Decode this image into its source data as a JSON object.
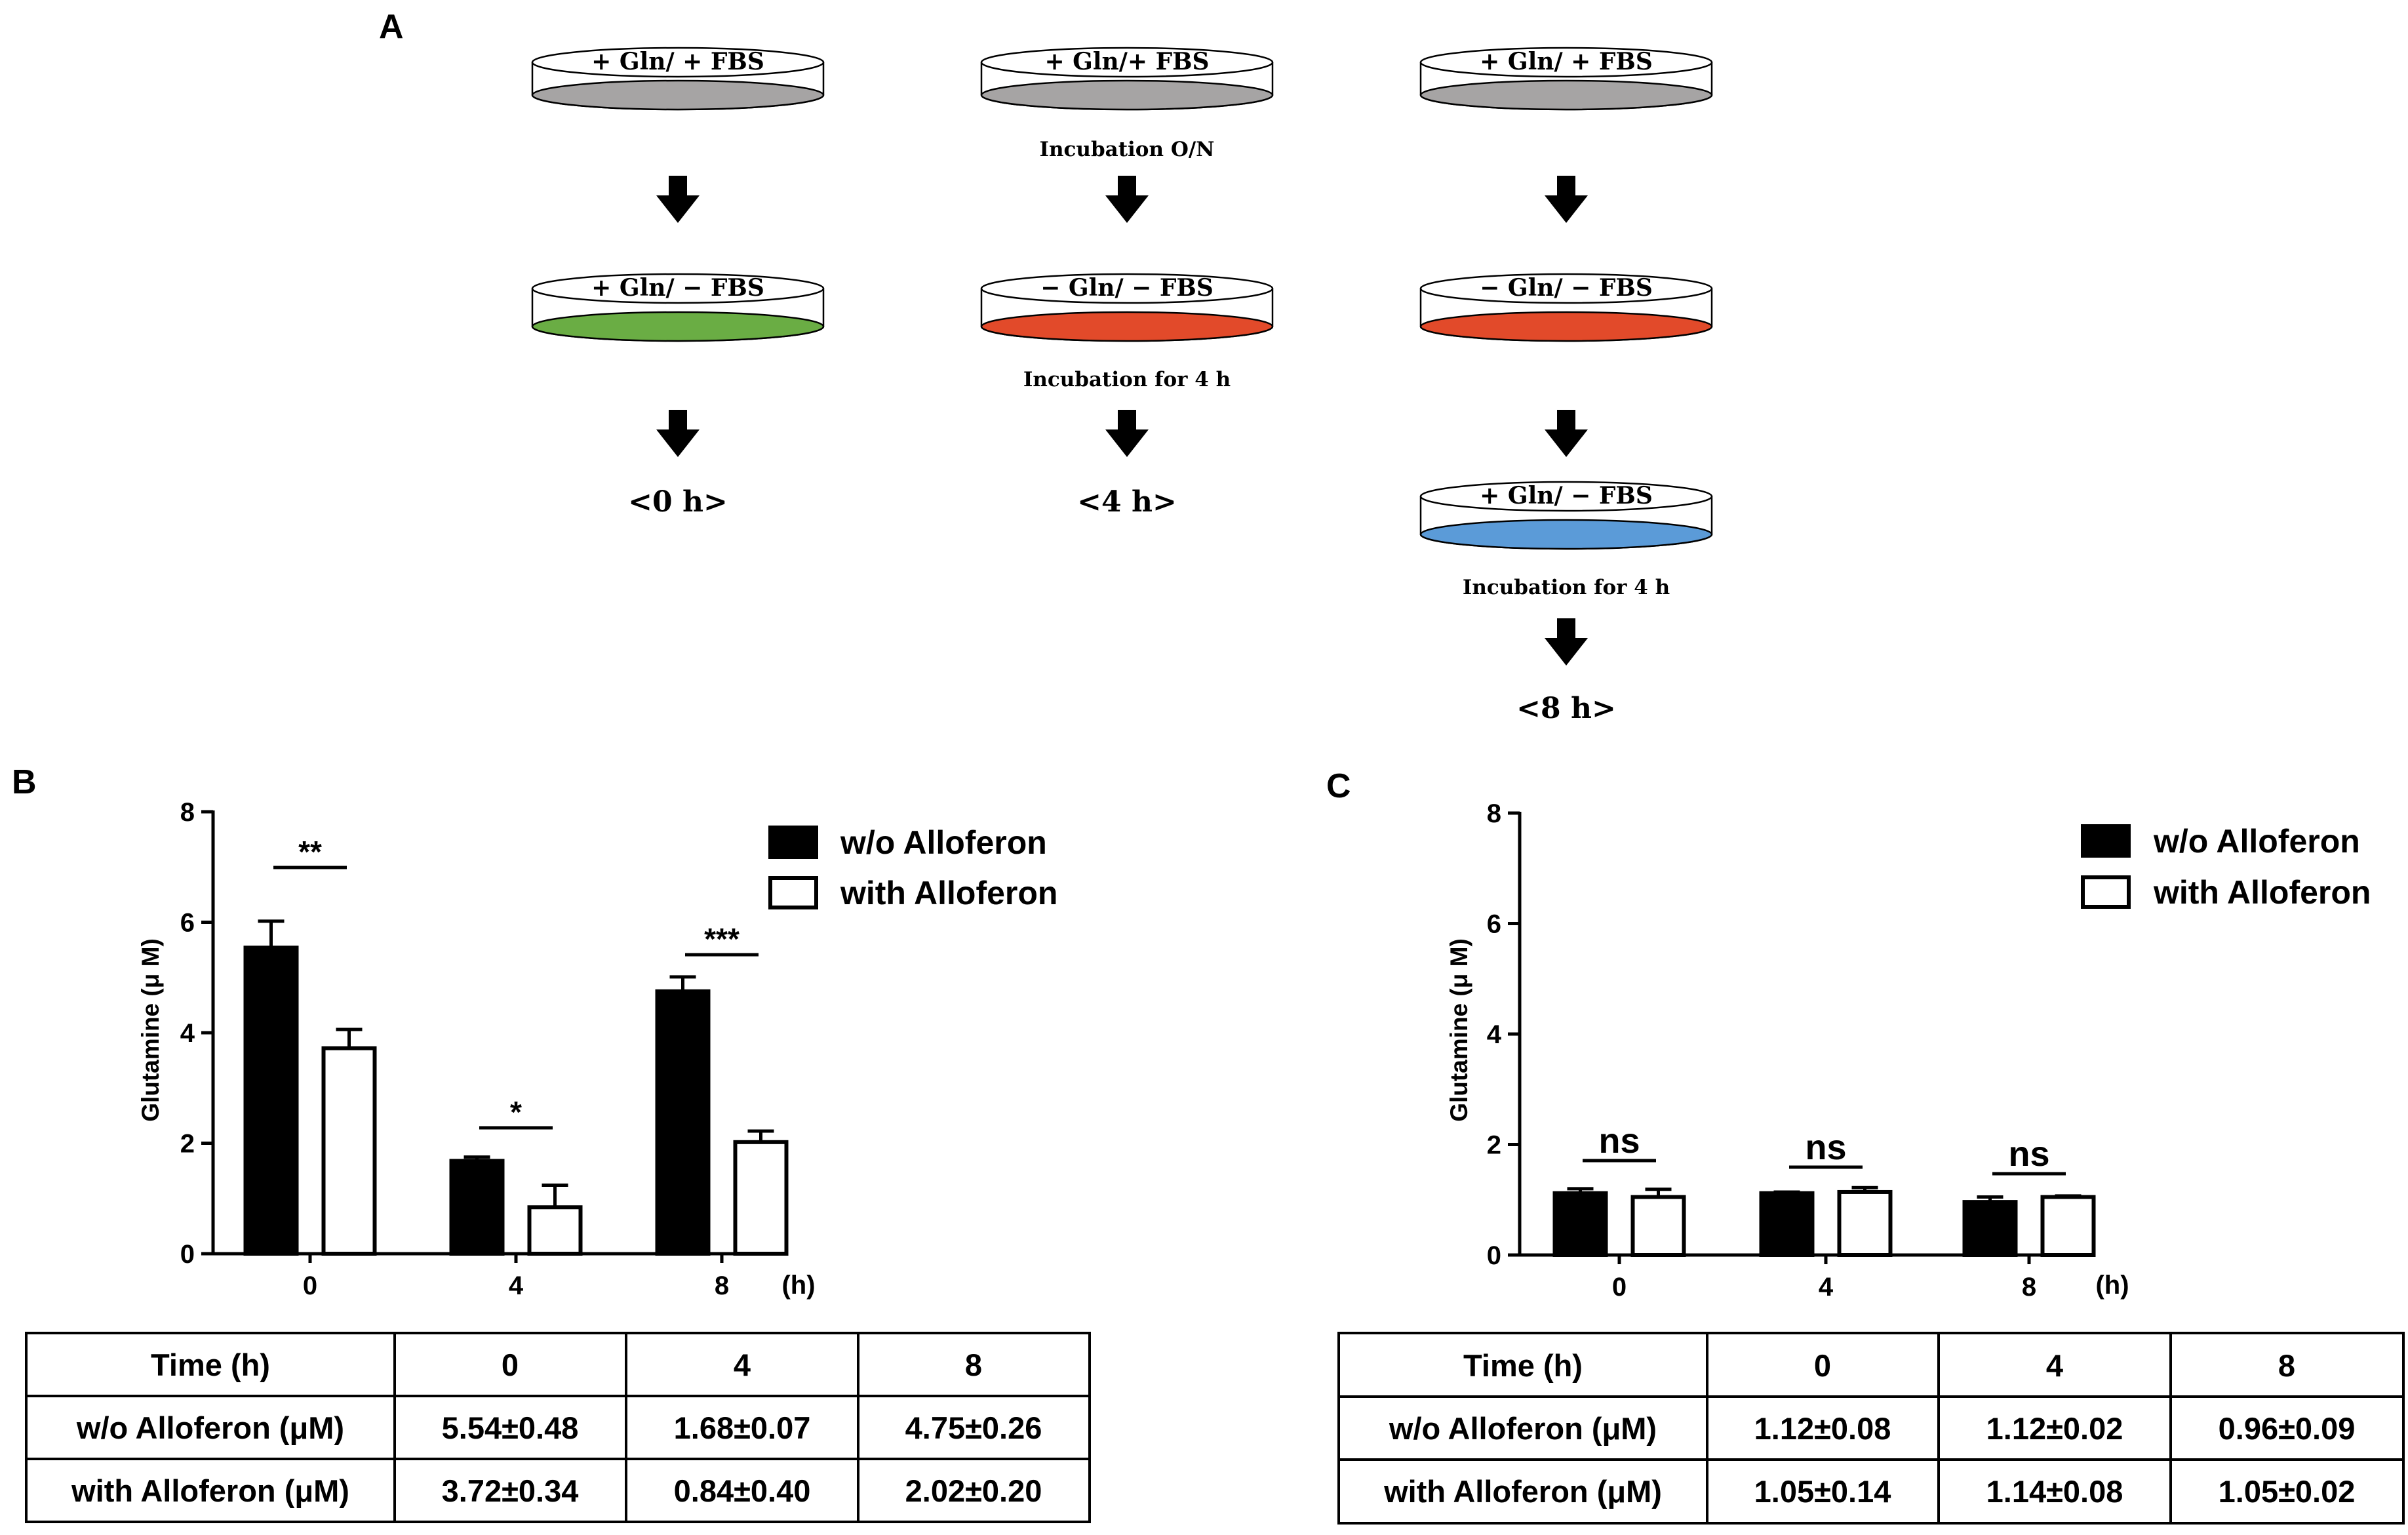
{
  "panel_a": {
    "letter": "A",
    "columns": [
      {
        "dishes": [
          {
            "text": "+ Gln/ + FBS",
            "fill": "#a6a4a4"
          },
          {
            "text": "+ Gln/ − FBS",
            "fill": "#6aad44"
          }
        ],
        "incubations": [
          "",
          ""
        ],
        "time": "<0 h>"
      },
      {
        "dishes": [
          {
            "text": "+ Gln/+ FBS",
            "fill": "#a6a4a4"
          },
          {
            "text": "− Gln/ − FBS",
            "fill": "#e24a2a"
          }
        ],
        "incubations": [
          "Incubation O/N",
          "Incubation for 4 h"
        ],
        "time": "<4 h>"
      },
      {
        "dishes": [
          {
            "text": "+ Gln/ + FBS",
            "fill": "#a6a4a4"
          },
          {
            "text": "− Gln/ − FBS",
            "fill": "#e24a2a"
          },
          {
            "text": "+ Gln/ − FBS",
            "fill": "#5b9bd8"
          }
        ],
        "incubations": [
          "",
          "",
          "Incubation for 4 h"
        ],
        "time": "<8 h>"
      }
    ]
  },
  "chart_data": [
    {
      "panel": "B",
      "type": "bar",
      "ylabel": "Glutamine (μ M)",
      "xunit": "(h)",
      "categories": [
        "0",
        "4",
        "8"
      ],
      "ylim": [
        0,
        8
      ],
      "yticks": [
        "0",
        "2",
        "4",
        "6",
        "8"
      ],
      "series": [
        {
          "name": "w/o Alloferon",
          "color": "#000000",
          "values": [
            5.54,
            1.68,
            4.75
          ],
          "errors": [
            0.48,
            0.07,
            0.26
          ]
        },
        {
          "name": "with Alloferon",
          "color": "#ffffff",
          "values": [
            3.72,
            0.84,
            2.02
          ],
          "errors": [
            0.34,
            0.4,
            0.2
          ]
        }
      ],
      "significance": [
        "**",
        "*",
        "***"
      ],
      "legend_position": "top-right",
      "table": {
        "header": [
          "Time (h)",
          "0",
          "4",
          "8"
        ],
        "rows": [
          [
            "w/o Alloferon (μM)",
            "5.54±0.48",
            "1.68±0.07",
            "4.75±0.26"
          ],
          [
            "with Alloferon (μM)",
            "3.72±0.34",
            "0.84±0.40",
            "2.02±0.20"
          ]
        ]
      }
    },
    {
      "panel": "C",
      "type": "bar",
      "ylabel": "Glutamine (μ M)",
      "xunit": "(h)",
      "categories": [
        "0",
        "4",
        "8"
      ],
      "ylim": [
        0,
        8
      ],
      "yticks": [
        "0",
        "2",
        "4",
        "6",
        "8"
      ],
      "series": [
        {
          "name": "w/o Alloferon",
          "color": "#000000",
          "values": [
            1.12,
            1.12,
            0.96
          ],
          "errors": [
            0.08,
            0.02,
            0.09
          ]
        },
        {
          "name": "with Alloferon",
          "color": "#ffffff",
          "values": [
            1.05,
            1.14,
            1.05
          ],
          "errors": [
            0.14,
            0.08,
            0.02
          ]
        }
      ],
      "significance": [
        "ns",
        "ns",
        "ns"
      ],
      "legend_position": "top-right",
      "table": {
        "header": [
          "Time (h)",
          "0",
          "4",
          "8"
        ],
        "rows": [
          [
            "w/o Alloferon (μM)",
            "1.12±0.08",
            "1.12±0.02",
            "0.96±0.09"
          ],
          [
            "with Alloferon (μM)",
            "1.05±0.14",
            "1.14±0.08",
            "1.05±0.02"
          ]
        ]
      }
    }
  ]
}
